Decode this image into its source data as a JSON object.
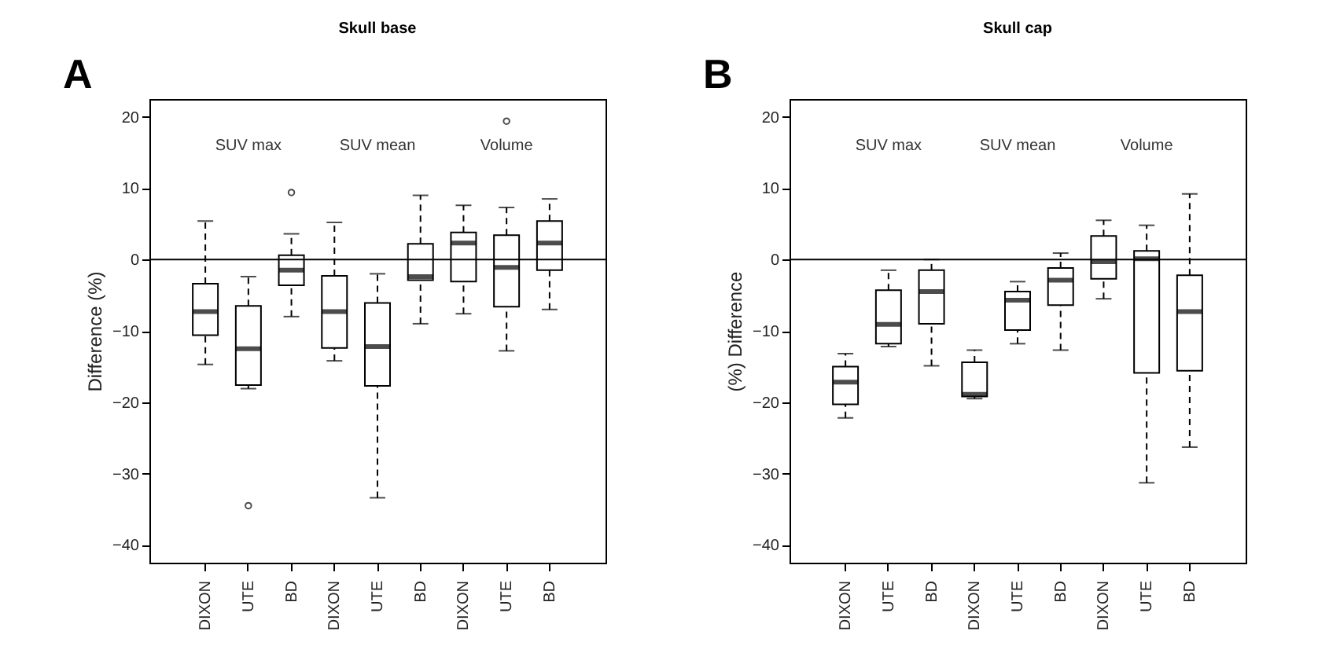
{
  "chart_data": [
    {
      "type": "box",
      "title": "Skull base",
      "ylabel": "Difference (%)",
      "annotations": [
        "A",
        "SUV max",
        "SUV mean",
        "Volume"
      ],
      "categories": [
        "DIXON",
        "UTE",
        "BD",
        "DIXON",
        "UTE",
        "BD",
        "DIXON",
        "UTE",
        "BD"
      ],
      "boxes": [
        {
          "low": -14.7,
          "q1": -10.6,
          "median": -7.3,
          "q3": -3.4,
          "high": 5.4
        },
        {
          "low": -18.1,
          "q1": -17.6,
          "median": -12.5,
          "q3": -6.5,
          "high": -2.4,
          "outliers": [
            -34.5
          ]
        },
        {
          "low": -8,
          "q1": -3.6,
          "median": -1.5,
          "q3": 0.6,
          "high": 3.6,
          "outliers": [
            9.4
          ]
        },
        {
          "low": -14.2,
          "q1": -12.4,
          "median": -7.3,
          "q3": -2.3,
          "high": 5.2
        },
        {
          "low": -33.4,
          "q1": -17.7,
          "median": -12.2,
          "q3": -6.1,
          "high": -2
        },
        {
          "low": -9,
          "q1": -2.9,
          "median": -2.4,
          "q3": 2.2,
          "high": 9
        },
        {
          "low": -7.6,
          "q1": -3.1,
          "median": 2.3,
          "q3": 3.8,
          "high": 7.6
        },
        {
          "low": -12.8,
          "q1": -6.6,
          "median": -1.1,
          "q3": 3.4,
          "high": 7.3,
          "outliers": [
            19.4
          ]
        },
        {
          "low": -7,
          "q1": -1.5,
          "median": 2.3,
          "q3": 5.4,
          "high": 8.5
        }
      ],
      "ylim": [
        -42.5,
        22.5
      ],
      "yticks": [
        -40,
        -30,
        -20,
        -10,
        0,
        10,
        20
      ],
      "grid": false,
      "ref_lines": [
        {
          "axis": "y",
          "value": 0
        }
      ]
    },
    {
      "type": "box",
      "title": "Skull cap",
      "ylabel": "(%) Difference",
      "annotations": [
        "B",
        "SUV max",
        "SUV mean",
        "Volume"
      ],
      "categories": [
        "DIXON",
        "UTE",
        "BD",
        "DIXON",
        "UTE",
        "BD",
        "DIXON",
        "UTE",
        "BD"
      ],
      "boxes": [
        {
          "low": -22.2,
          "q1": -20.3,
          "median": -17.2,
          "q3": -15,
          "high": -13.2
        },
        {
          "low": -12.2,
          "q1": -11.8,
          "median": -9.1,
          "q3": -4.3,
          "high": -1.5
        },
        {
          "low": -14.9,
          "q1": -9,
          "median": -4.5,
          "q3": -1.5,
          "high": 0
        },
        {
          "low": -19.5,
          "q1": -19.2,
          "median": -18.9,
          "q3": -14.4,
          "high": -12.7
        },
        {
          "low": -11.8,
          "q1": -9.9,
          "median": -5.7,
          "q3": -4.5,
          "high": -3.1
        },
        {
          "low": -12.7,
          "q1": -6.4,
          "median": -2.9,
          "q3": -1.2,
          "high": 0.9
        },
        {
          "low": -5.5,
          "q1": -2.7,
          "median": -0.3,
          "q3": 3.3,
          "high": 5.5
        },
        {
          "low": -31.3,
          "q1": -15.9,
          "median": 0.1,
          "q3": 1.2,
          "high": 4.8
        },
        {
          "low": -26.3,
          "q1": -15.6,
          "median": -7.3,
          "q3": -2.2,
          "high": 9.2
        }
      ],
      "ylim": [
        -42.5,
        22.5
      ],
      "yticks": [
        -40,
        -30,
        -20,
        -10,
        0,
        10,
        20
      ],
      "grid": false,
      "ref_lines": [
        {
          "axis": "y",
          "value": 0
        }
      ]
    }
  ]
}
